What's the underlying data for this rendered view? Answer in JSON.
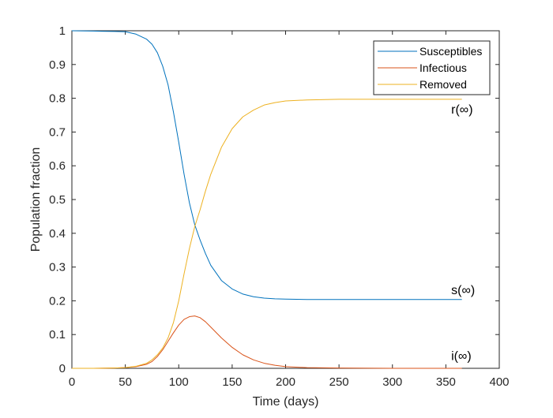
{
  "chart_data": {
    "type": "line",
    "xlabel": "Time (days)",
    "ylabel": "Population fraction",
    "xlim": [
      0,
      400
    ],
    "ylim": [
      0,
      1
    ],
    "xticks": [
      0,
      50,
      100,
      150,
      200,
      250,
      300,
      350,
      400
    ],
    "yticks": [
      0,
      0.1,
      0.2,
      0.3,
      0.4,
      0.5,
      0.6,
      0.7,
      0.8,
      0.9,
      1
    ],
    "grid": false,
    "legend_position": "top-right",
    "series": [
      {
        "name": "Susceptibles",
        "color": "#0072BD",
        "x": [
          0,
          20,
          40,
          50,
          60,
          70,
          75,
          80,
          85,
          90,
          95,
          100,
          105,
          110,
          115,
          120,
          125,
          130,
          140,
          150,
          160,
          170,
          180,
          190,
          200,
          220,
          250,
          300,
          350,
          365
        ],
        "y": [
          1.0,
          0.999,
          0.998,
          0.997,
          0.99,
          0.975,
          0.96,
          0.935,
          0.895,
          0.84,
          0.76,
          0.67,
          0.575,
          0.49,
          0.425,
          0.38,
          0.34,
          0.305,
          0.26,
          0.235,
          0.22,
          0.212,
          0.208,
          0.206,
          0.205,
          0.204,
          0.204,
          0.204,
          0.204,
          0.204
        ]
      },
      {
        "name": "Infectious",
        "color": "#D95319",
        "x": [
          0,
          20,
          40,
          50,
          60,
          70,
          75,
          80,
          85,
          90,
          95,
          100,
          105,
          110,
          115,
          120,
          125,
          130,
          140,
          150,
          160,
          170,
          180,
          190,
          200,
          220,
          250,
          300,
          350,
          365
        ],
        "y": [
          0.0,
          0.0,
          0.001,
          0.002,
          0.005,
          0.012,
          0.02,
          0.035,
          0.055,
          0.08,
          0.105,
          0.128,
          0.145,
          0.153,
          0.155,
          0.15,
          0.138,
          0.122,
          0.09,
          0.062,
          0.04,
          0.025,
          0.015,
          0.009,
          0.005,
          0.002,
          0.001,
          0.0,
          0.0,
          0.0
        ]
      },
      {
        "name": "Removed",
        "color": "#EDB120",
        "x": [
          0,
          20,
          40,
          50,
          60,
          70,
          75,
          80,
          85,
          90,
          95,
          100,
          105,
          110,
          115,
          120,
          125,
          130,
          140,
          150,
          160,
          170,
          180,
          190,
          200,
          220,
          250,
          300,
          350,
          365
        ],
        "y": [
          0.0,
          0.0,
          0.001,
          0.002,
          0.006,
          0.015,
          0.025,
          0.04,
          0.06,
          0.09,
          0.135,
          0.2,
          0.28,
          0.355,
          0.42,
          0.47,
          0.525,
          0.575,
          0.655,
          0.71,
          0.745,
          0.765,
          0.78,
          0.787,
          0.792,
          0.795,
          0.797,
          0.797,
          0.797,
          0.797
        ]
      }
    ],
    "annotations": [
      {
        "text": "r(∞)",
        "x": 355,
        "y": 0.755
      },
      {
        "text": "s(∞)",
        "x": 355,
        "y": 0.22
      },
      {
        "text": "i(∞)",
        "x": 355,
        "y": 0.025
      }
    ]
  }
}
